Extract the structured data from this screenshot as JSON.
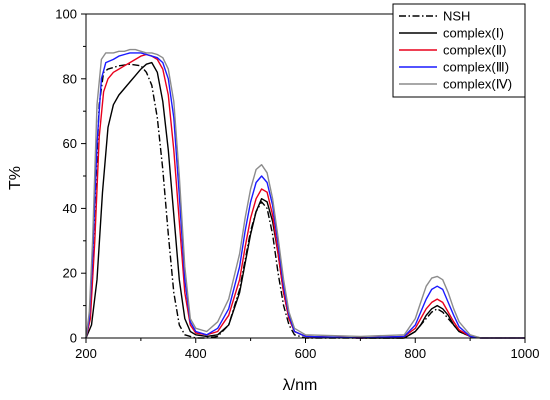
{
  "chart_data": {
    "type": "line",
    "title": "",
    "xlabel": "λ/nm",
    "ylabel": "T%",
    "xlim": [
      200,
      1000
    ],
    "ylim": [
      0,
      100
    ],
    "xticks": [
      200,
      400,
      600,
      800,
      1000
    ],
    "yticks": [
      0,
      20,
      40,
      60,
      80,
      100
    ],
    "grid": false,
    "legend_position": "top-right",
    "series": [
      {
        "name": "NSH",
        "color": "#000000",
        "dash": "dashdot",
        "points": [
          [
            200,
            0
          ],
          [
            208,
            8
          ],
          [
            216,
            40
          ],
          [
            224,
            72
          ],
          [
            232,
            82
          ],
          [
            240,
            83
          ],
          [
            260,
            84
          ],
          [
            280,
            84.5
          ],
          [
            300,
            84
          ],
          [
            310,
            82
          ],
          [
            320,
            78
          ],
          [
            330,
            68
          ],
          [
            340,
            52
          ],
          [
            350,
            32
          ],
          [
            360,
            14
          ],
          [
            370,
            4
          ],
          [
            380,
            1
          ],
          [
            400,
            0
          ],
          [
            420,
            0
          ],
          [
            440,
            0.5
          ],
          [
            460,
            4
          ],
          [
            480,
            15
          ],
          [
            490,
            24
          ],
          [
            500,
            33
          ],
          [
            510,
            39
          ],
          [
            520,
            42
          ],
          [
            530,
            40
          ],
          [
            540,
            32
          ],
          [
            550,
            20
          ],
          [
            560,
            10
          ],
          [
            570,
            4
          ],
          [
            580,
            1
          ],
          [
            600,
            0
          ],
          [
            700,
            0
          ],
          [
            780,
            0
          ],
          [
            800,
            2
          ],
          [
            810,
            4
          ],
          [
            820,
            6
          ],
          [
            830,
            8
          ],
          [
            840,
            9
          ],
          [
            850,
            8
          ],
          [
            860,
            6
          ],
          [
            870,
            4
          ],
          [
            880,
            2
          ],
          [
            900,
            0.5
          ],
          [
            920,
            0
          ],
          [
            1000,
            0
          ]
        ]
      },
      {
        "name": "complex(Ⅰ)",
        "color": "#000000",
        "dash": "solid",
        "points": [
          [
            200,
            0
          ],
          [
            210,
            4
          ],
          [
            220,
            18
          ],
          [
            230,
            45
          ],
          [
            240,
            65
          ],
          [
            250,
            72
          ],
          [
            260,
            75
          ],
          [
            270,
            77
          ],
          [
            280,
            79
          ],
          [
            290,
            81
          ],
          [
            300,
            83
          ],
          [
            310,
            84.5
          ],
          [
            320,
            85
          ],
          [
            330,
            82
          ],
          [
            340,
            73
          ],
          [
            350,
            58
          ],
          [
            360,
            38
          ],
          [
            370,
            18
          ],
          [
            380,
            6
          ],
          [
            390,
            2
          ],
          [
            400,
            1
          ],
          [
            420,
            0.5
          ],
          [
            440,
            1
          ],
          [
            460,
            4
          ],
          [
            480,
            14
          ],
          [
            490,
            23
          ],
          [
            500,
            32
          ],
          [
            510,
            39
          ],
          [
            520,
            43
          ],
          [
            530,
            42
          ],
          [
            540,
            36
          ],
          [
            550,
            26
          ],
          [
            560,
            14
          ],
          [
            570,
            6
          ],
          [
            580,
            2
          ],
          [
            600,
            0.5
          ],
          [
            700,
            0
          ],
          [
            780,
            0
          ],
          [
            800,
            2
          ],
          [
            810,
            4
          ],
          [
            820,
            7
          ],
          [
            830,
            9
          ],
          [
            840,
            10
          ],
          [
            850,
            9
          ],
          [
            860,
            7
          ],
          [
            870,
            4
          ],
          [
            880,
            2
          ],
          [
            900,
            0.5
          ],
          [
            920,
            0
          ],
          [
            1000,
            0
          ]
        ]
      },
      {
        "name": "complex(Ⅱ)",
        "color": "#e8001c",
        "dash": "solid",
        "points": [
          [
            200,
            0
          ],
          [
            208,
            6
          ],
          [
            216,
            30
          ],
          [
            224,
            62
          ],
          [
            232,
            76
          ],
          [
            240,
            80
          ],
          [
            250,
            82
          ],
          [
            260,
            83
          ],
          [
            270,
            84
          ],
          [
            280,
            85
          ],
          [
            290,
            86
          ],
          [
            300,
            87
          ],
          [
            310,
            87.5
          ],
          [
            320,
            87
          ],
          [
            330,
            86
          ],
          [
            340,
            83
          ],
          [
            350,
            75
          ],
          [
            360,
            58
          ],
          [
            370,
            36
          ],
          [
            380,
            14
          ],
          [
            390,
            4
          ],
          [
            400,
            1.5
          ],
          [
            420,
            1
          ],
          [
            440,
            2
          ],
          [
            460,
            7
          ],
          [
            480,
            18
          ],
          [
            490,
            28
          ],
          [
            500,
            37
          ],
          [
            510,
            43
          ],
          [
            520,
            46
          ],
          [
            530,
            45
          ],
          [
            540,
            38
          ],
          [
            550,
            26
          ],
          [
            560,
            14
          ],
          [
            570,
            6
          ],
          [
            580,
            2
          ],
          [
            600,
            0.5
          ],
          [
            700,
            0
          ],
          [
            780,
            0.5
          ],
          [
            800,
            3
          ],
          [
            810,
            6
          ],
          [
            820,
            9
          ],
          [
            830,
            11
          ],
          [
            840,
            12
          ],
          [
            850,
            11
          ],
          [
            860,
            8
          ],
          [
            870,
            5
          ],
          [
            880,
            2.5
          ],
          [
            900,
            0.5
          ],
          [
            920,
            0
          ],
          [
            1000,
            0
          ]
        ]
      },
      {
        "name": "complex(Ⅲ)",
        "color": "#1a1aff",
        "dash": "solid",
        "points": [
          [
            200,
            0
          ],
          [
            206,
            6
          ],
          [
            212,
            25
          ],
          [
            220,
            60
          ],
          [
            228,
            80
          ],
          [
            236,
            85
          ],
          [
            250,
            86
          ],
          [
            260,
            87
          ],
          [
            270,
            87.5
          ],
          [
            280,
            88
          ],
          [
            290,
            88
          ],
          [
            300,
            88
          ],
          [
            310,
            87.5
          ],
          [
            320,
            87
          ],
          [
            330,
            86.5
          ],
          [
            340,
            85
          ],
          [
            350,
            80
          ],
          [
            360,
            68
          ],
          [
            370,
            44
          ],
          [
            380,
            18
          ],
          [
            390,
            5
          ],
          [
            400,
            2
          ],
          [
            420,
            1
          ],
          [
            440,
            3
          ],
          [
            460,
            9
          ],
          [
            480,
            22
          ],
          [
            490,
            33
          ],
          [
            500,
            42
          ],
          [
            510,
            48
          ],
          [
            520,
            50
          ],
          [
            530,
            48
          ],
          [
            540,
            41
          ],
          [
            550,
            29
          ],
          [
            560,
            16
          ],
          [
            570,
            7
          ],
          [
            580,
            2
          ],
          [
            600,
            0.5
          ],
          [
            700,
            0
          ],
          [
            780,
            0.5
          ],
          [
            800,
            4
          ],
          [
            810,
            8
          ],
          [
            820,
            12
          ],
          [
            830,
            15
          ],
          [
            840,
            16
          ],
          [
            850,
            15
          ],
          [
            860,
            11
          ],
          [
            870,
            7
          ],
          [
            880,
            3.5
          ],
          [
            900,
            0.5
          ],
          [
            920,
            0
          ],
          [
            1000,
            0
          ]
        ]
      },
      {
        "name": "complex(Ⅳ)",
        "color": "#8c8c8c",
        "dash": "solid",
        "points": [
          [
            200,
            0
          ],
          [
            206,
            8
          ],
          [
            212,
            30
          ],
          [
            220,
            72
          ],
          [
            228,
            86
          ],
          [
            236,
            88
          ],
          [
            250,
            88
          ],
          [
            260,
            88.5
          ],
          [
            270,
            88.5
          ],
          [
            280,
            89
          ],
          [
            290,
            89
          ],
          [
            300,
            88.5
          ],
          [
            310,
            88
          ],
          [
            320,
            88
          ],
          [
            330,
            87.5
          ],
          [
            340,
            86.5
          ],
          [
            350,
            83
          ],
          [
            360,
            73
          ],
          [
            370,
            50
          ],
          [
            380,
            22
          ],
          [
            390,
            6
          ],
          [
            400,
            3
          ],
          [
            420,
            2
          ],
          [
            440,
            5
          ],
          [
            460,
            12
          ],
          [
            480,
            26
          ],
          [
            490,
            37
          ],
          [
            500,
            46
          ],
          [
            510,
            52
          ],
          [
            520,
            53.5
          ],
          [
            530,
            51
          ],
          [
            540,
            43
          ],
          [
            550,
            31
          ],
          [
            560,
            18
          ],
          [
            570,
            8
          ],
          [
            580,
            3
          ],
          [
            600,
            1
          ],
          [
            700,
            0.5
          ],
          [
            780,
            1
          ],
          [
            800,
            6
          ],
          [
            810,
            11
          ],
          [
            820,
            16
          ],
          [
            830,
            18.5
          ],
          [
            840,
            19
          ],
          [
            850,
            18
          ],
          [
            860,
            14
          ],
          [
            870,
            9
          ],
          [
            880,
            5
          ],
          [
            900,
            1
          ],
          [
            920,
            0
          ],
          [
            1000,
            0
          ]
        ]
      }
    ]
  }
}
